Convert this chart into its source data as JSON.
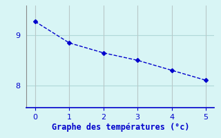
{
  "x": [
    0,
    1,
    2,
    3,
    4,
    5
  ],
  "y": [
    9.28,
    8.85,
    8.65,
    8.5,
    8.3,
    8.1
  ],
  "line_color": "#0000cc",
  "marker": "D",
  "marker_size": 3,
  "linestyle": "dashed",
  "linewidth": 1.0,
  "xlabel": "Graphe des températures (°c)",
  "xlabel_color": "#0000cc",
  "background_color": "#d8f5f5",
  "grid_color_h": "#b0d8d8",
  "grid_color_v": "#b8c8c8",
  "axis_bottom_color": "#0000cc",
  "axis_left_color": "#888888",
  "tick_color": "#0000cc",
  "ylim": [
    7.55,
    9.6
  ],
  "xlim": [
    -0.25,
    5.25
  ],
  "yticks": [
    8,
    9
  ],
  "xticks": [
    0,
    1,
    2,
    3,
    4,
    5
  ],
  "xlabel_fontsize": 8.5,
  "tick_labelsize": 8
}
